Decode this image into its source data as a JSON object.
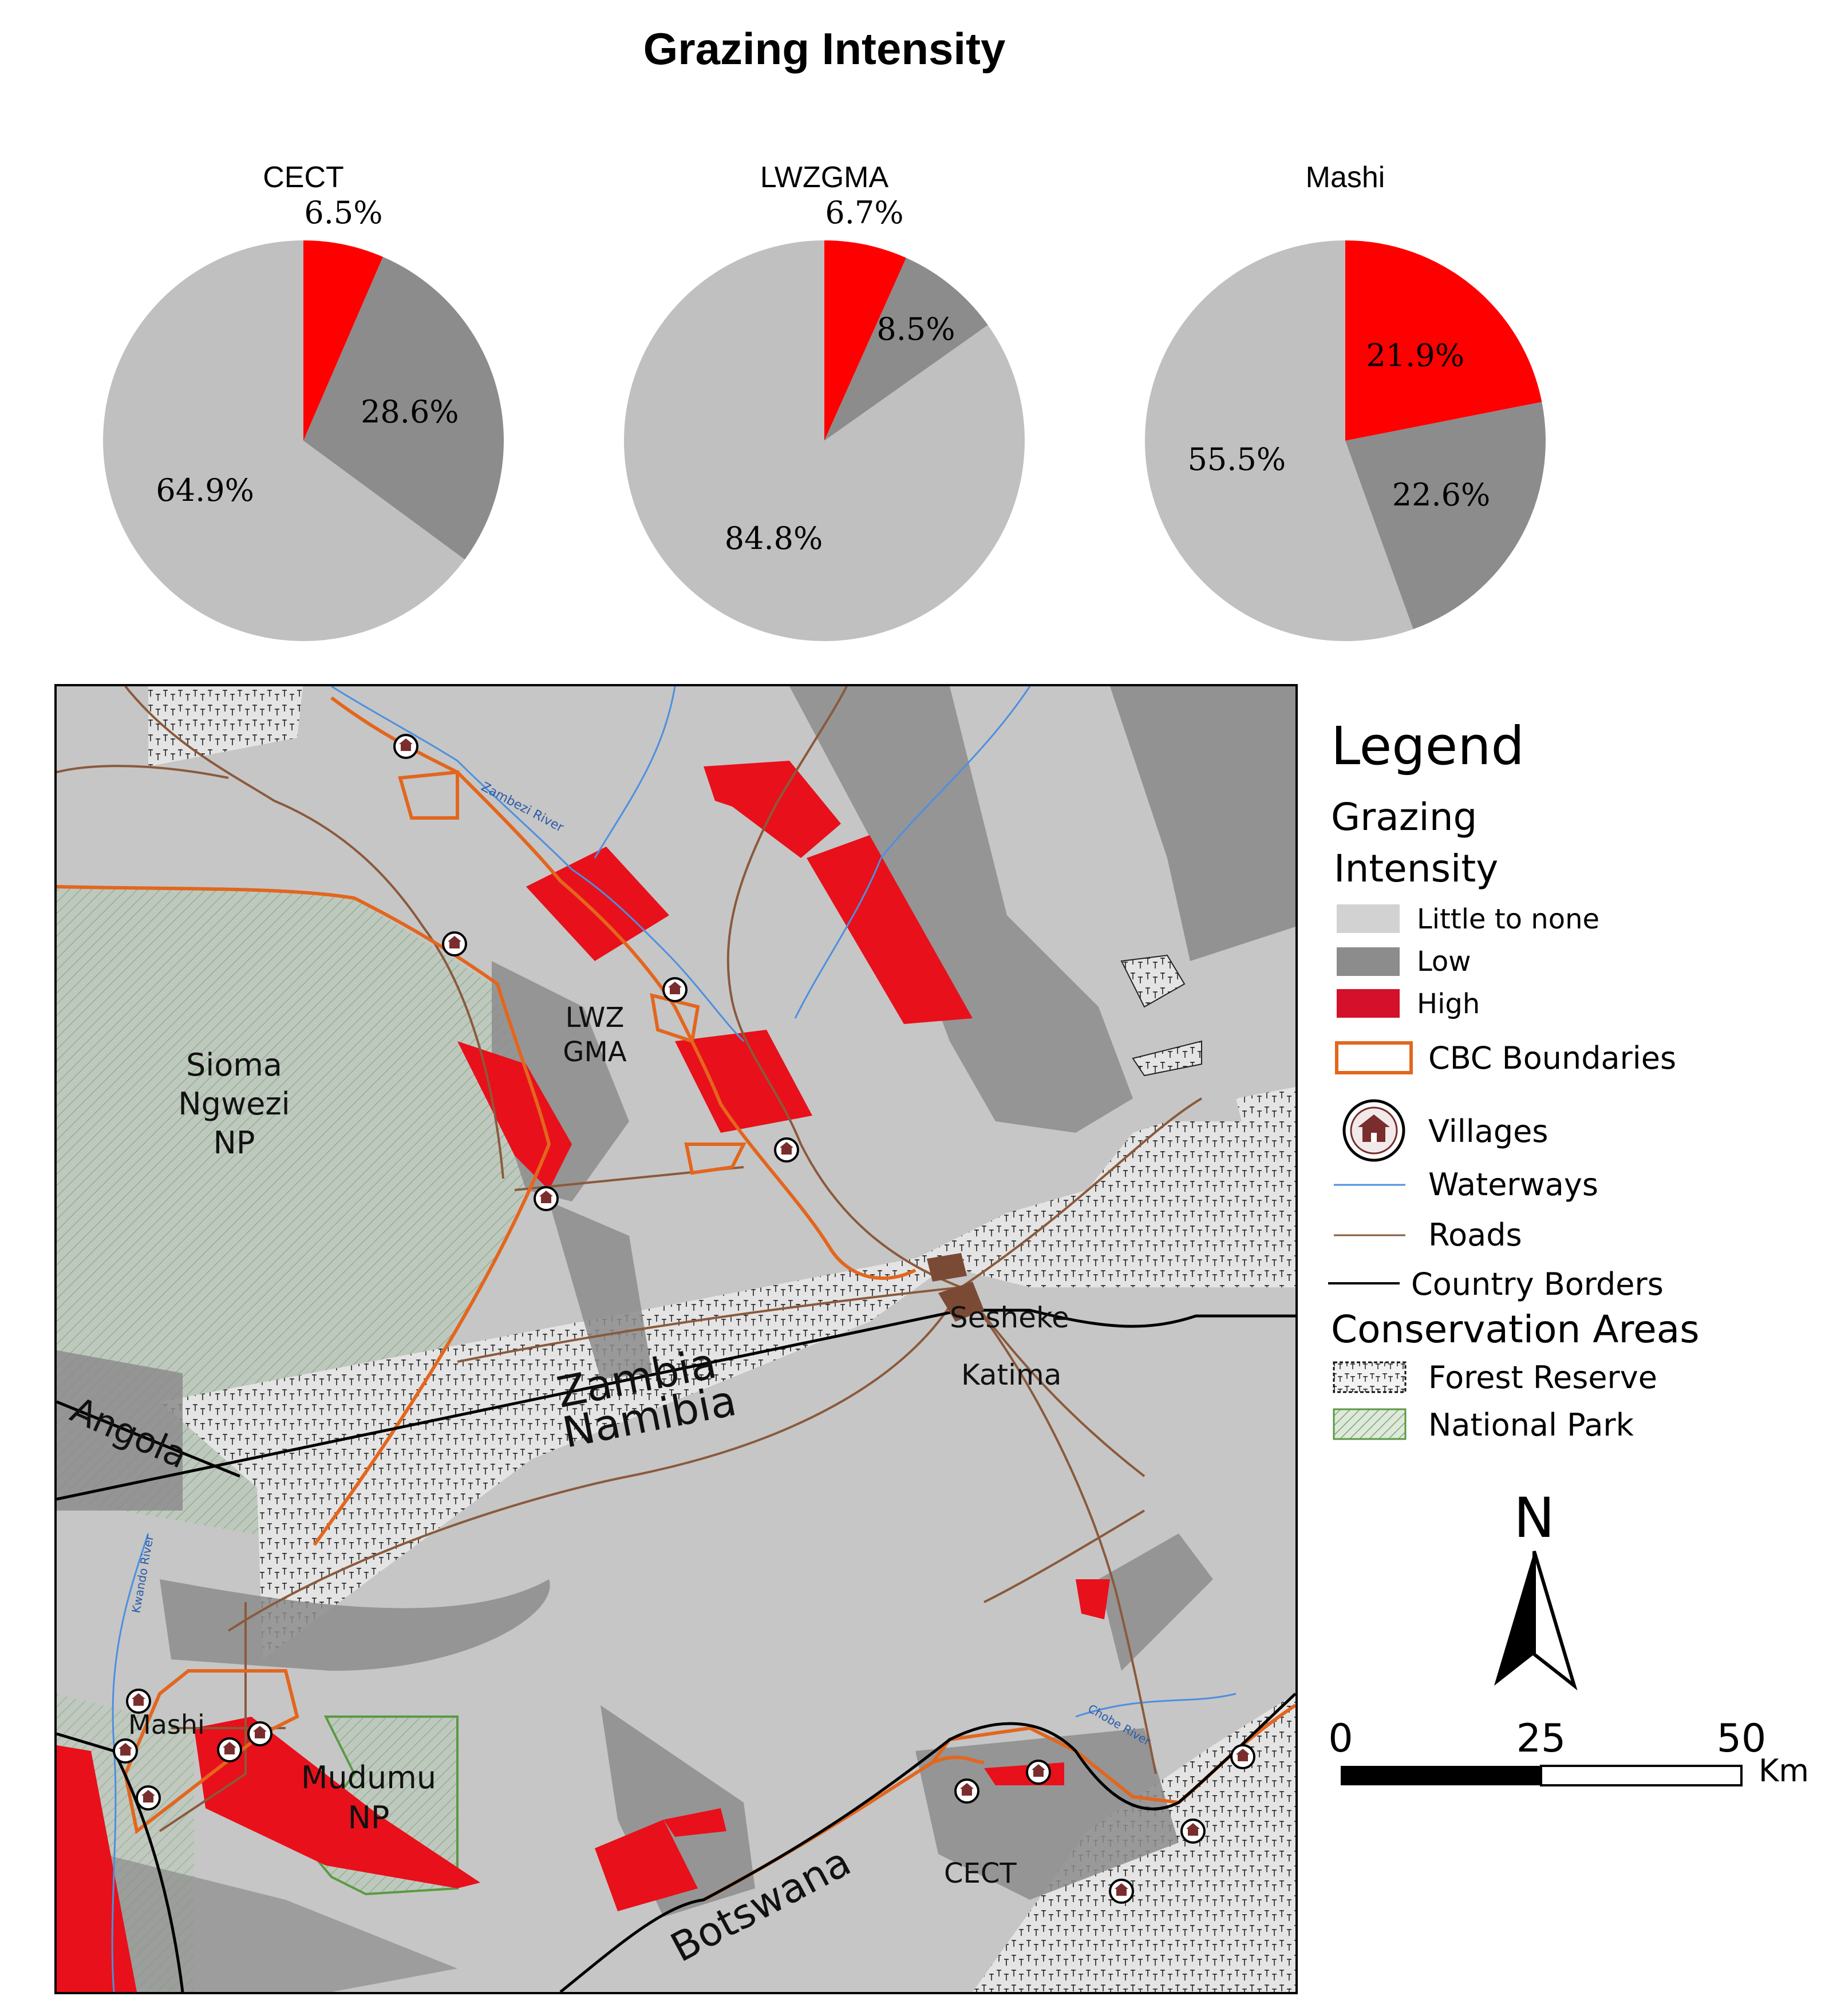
{
  "title": "Grazing Intensity",
  "colors": {
    "high": "#ff0000",
    "low": "#8c8c8c",
    "little": "#c0c0c0",
    "map_high": "#e8101a",
    "cbc": "#e3661e",
    "waterway": "#4d8fe0",
    "road": "#8a5a3c",
    "border": "#000000",
    "national_park": "#5a9a44"
  },
  "chart_data": [
    {
      "type": "pie",
      "title": "CECT",
      "categories": [
        "High",
        "Low",
        "Little to none"
      ],
      "values": [
        6.5,
        28.6,
        64.9
      ],
      "labels": [
        "6.5%",
        "28.6%",
        "64.9%"
      ]
    },
    {
      "type": "pie",
      "title": "LWZGMA",
      "categories": [
        "High",
        "Low",
        "Little to none"
      ],
      "values": [
        6.7,
        8.5,
        84.8
      ],
      "labels": [
        "6.7%",
        "8.5%",
        "84.8%"
      ]
    },
    {
      "type": "pie",
      "title": "Mashi",
      "categories": [
        "High",
        "Low",
        "Little to none"
      ],
      "values": [
        21.9,
        22.6,
        55.5
      ],
      "labels": [
        "21.9%",
        "22.6%",
        "55.5%"
      ]
    }
  ],
  "map": {
    "labels": {
      "sioma_1": "Sioma",
      "sioma_2": "Ngwezi",
      "sioma_3": "NP",
      "lwz_1": "LWZ",
      "lwz_2": "GMA",
      "zambia": "Zambia",
      "namibia": "Namibia",
      "angola": "Angola",
      "botswana": "Botswana",
      "sesheke": "Sesheke",
      "katima": "Katima",
      "mashi": "Mashi",
      "mudumu_1": "Mudumu",
      "mudumu_2": "NP",
      "cect": "CECT",
      "zambezi_river": "Zambezi River",
      "kwando_river": "Kwando River",
      "chobe_river": "Chobe River"
    }
  },
  "legend": {
    "title": "Legend",
    "grazing_heading_1": "Grazing",
    "grazing_heading_2": "Intensity",
    "items": {
      "little": "Little to none",
      "low": "Low",
      "high": "High",
      "cbc": "CBC Boundaries",
      "villages": "Villages",
      "waterways": "Waterways",
      "roads": "Roads",
      "country_borders": "Country Borders"
    },
    "conservation_heading": "Conservation Areas",
    "forest_reserve": "Forest Reserve",
    "national_park": "National Park"
  },
  "north_arrow": {
    "label": "N"
  },
  "scale_bar": {
    "ticks": [
      "0",
      "25",
      "50"
    ],
    "unit": "Km"
  }
}
